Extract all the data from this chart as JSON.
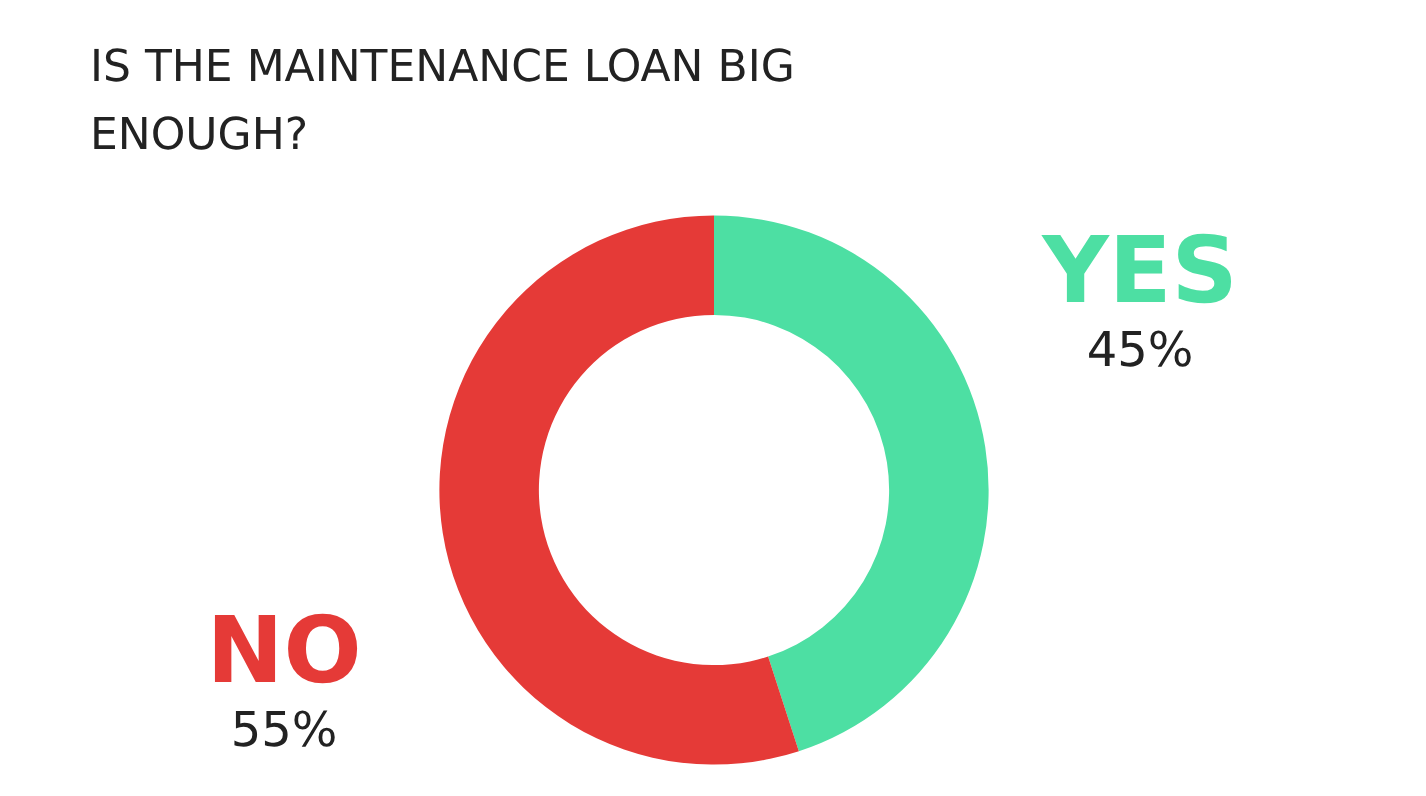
{
  "chart_data": {
    "type": "donut",
    "title": "IS THE MAINTENANCE LOAN BIG ENOUGH?",
    "categories": [
      "YES",
      "NO"
    ],
    "values": [
      45,
      55
    ],
    "colors": [
      "#4ddfa3",
      "#e53a37"
    ],
    "value_labels": [
      "45%",
      "55%"
    ]
  }
}
